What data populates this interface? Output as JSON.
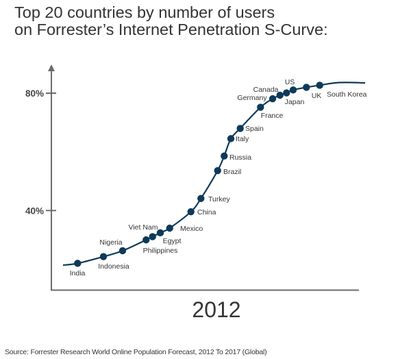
{
  "chart_data": {
    "type": "scatter",
    "title": "Top 20 countries by number of users on Forrester’s Internet Penetration S-Curve:",
    "title_lines": [
      "Top 20 countries by number of users",
      "on Forrester’s Internet Penetration S-Curve:"
    ],
    "xlabel": "2012",
    "ylabel": "",
    "y_ticks": [
      "40%",
      "80%"
    ],
    "y_tick_values": [
      40,
      80
    ],
    "grid": false,
    "legend": "none",
    "point_color": "#0d3a5a",
    "axis_color": "#6b6b6b",
    "points": [
      {
        "country": "India",
        "y": 22.0
      },
      {
        "country": "Indonesia",
        "y": 24.3
      },
      {
        "country": "Nigeria",
        "y": 26.3
      },
      {
        "country": "Philippines",
        "y": 30.0
      },
      {
        "country": "Viet Nam",
        "y": 31.1
      },
      {
        "country": "Egypt",
        "y": 32.4
      },
      {
        "country": "Mexico",
        "y": 34.0
      },
      {
        "country": "China",
        "y": 39.6
      },
      {
        "country": "Turkey",
        "y": 44.1
      },
      {
        "country": "Brazil",
        "y": 53.6
      },
      {
        "country": "Russia",
        "y": 58.6
      },
      {
        "country": "Italy",
        "y": 64.5
      },
      {
        "country": "Spain",
        "y": 68.0
      },
      {
        "country": "France",
        "y": 75.2
      },
      {
        "country": "Germany",
        "y": 78.1
      },
      {
        "country": "Canada",
        "y": 79.3
      },
      {
        "country": "US",
        "y": 80.1
      },
      {
        "country": "Japan",
        "y": 81.1
      },
      {
        "country": "UK",
        "y": 82.0
      },
      {
        "country": "South Korea",
        "y": 82.7
      }
    ]
  },
  "source": "Source: Forrester Research World Online Population Forecast, 2012 To 2017  (Global)"
}
